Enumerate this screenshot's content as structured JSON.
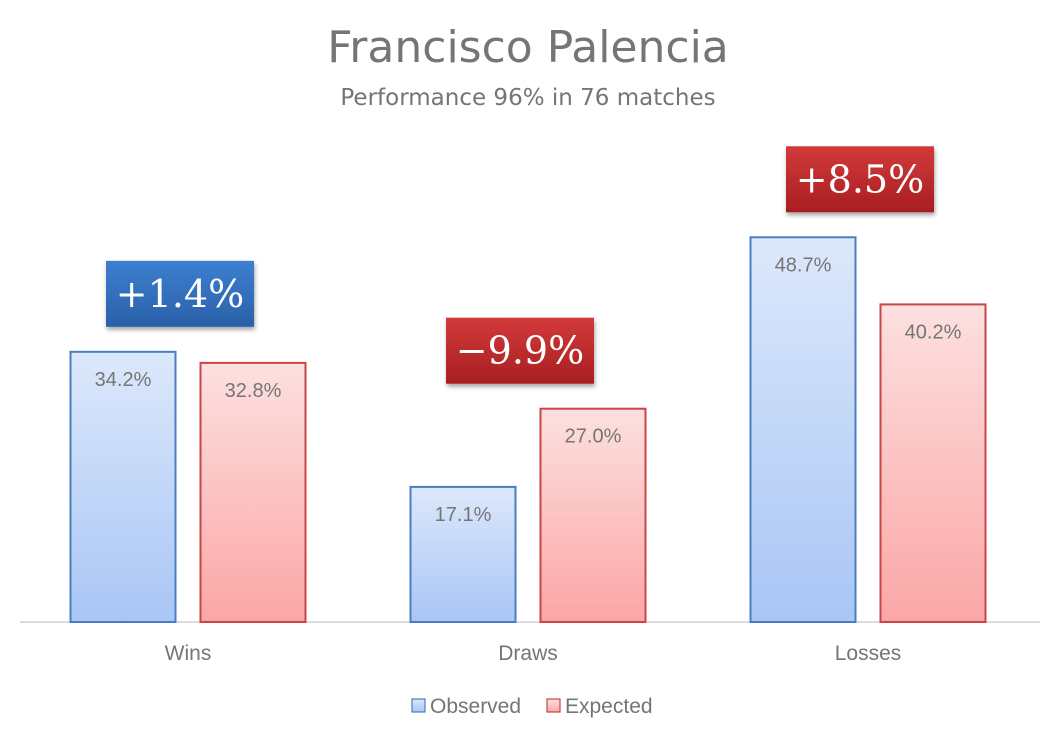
{
  "chart_data": {
    "type": "bar",
    "title": "Francisco Palencia",
    "subtitle": "Performance 96% in 76 matches",
    "categories": [
      "Wins",
      "Draws",
      "Losses"
    ],
    "series": [
      {
        "name": "Observed",
        "values": [
          34.2,
          17.1,
          48.7
        ],
        "labels": [
          "34.2%",
          "17.1%",
          "48.7%"
        ]
      },
      {
        "name": "Expected",
        "values": [
          32.8,
          27.0,
          40.2
        ],
        "labels": [
          "32.8%",
          "27.0%",
          "40.2%"
        ]
      }
    ],
    "differences": [
      {
        "label": "+1.4%",
        "value": 1.4,
        "color": "#2e6bb5"
      },
      {
        "label": "−9.9%",
        "value": -9.9,
        "color": "#c0282c"
      },
      {
        "label": "+8.5%",
        "value": 8.5,
        "color": "#c0282c"
      }
    ],
    "ylim": [
      0,
      50
    ],
    "grid": false,
    "legend": "bottom",
    "colors": {
      "observed_top": "#dce8fb",
      "observed_bottom": "#a9c6f5",
      "observed_border": "#4a7ec2",
      "expected_top": "#fde0e0",
      "expected_bottom": "#fba6a6",
      "expected_border": "#c84646",
      "text": "#757575",
      "axis": "#d0d0d0"
    }
  }
}
